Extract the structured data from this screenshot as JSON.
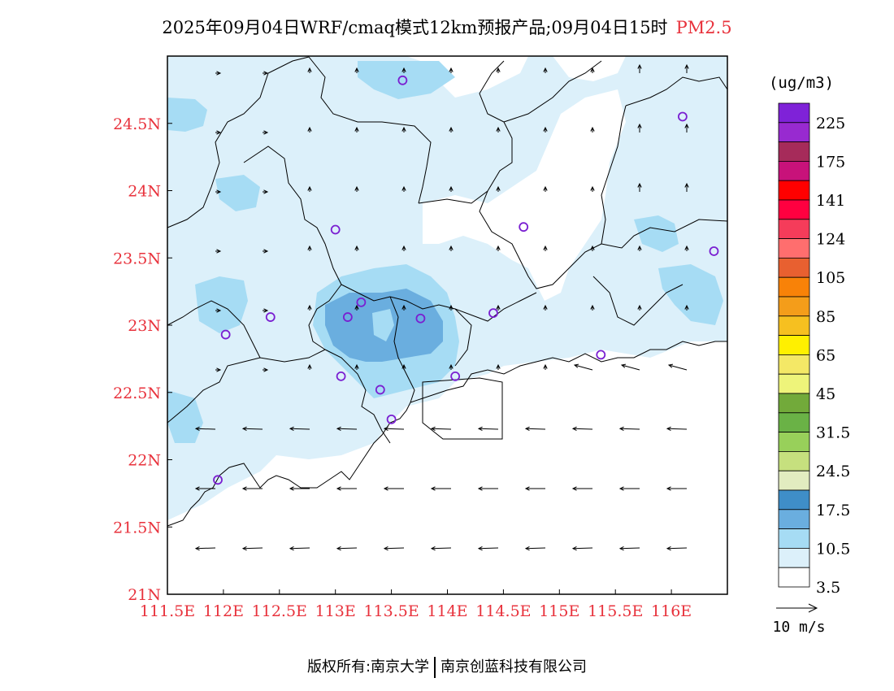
{
  "title": {
    "text": "2025年09月04日WRF/cmaq模式12km预报产品;09月04日15时",
    "variable": "PM2.5"
  },
  "colors": {
    "axis_label": "#e8323c",
    "variable": "#e8323c",
    "station_marker": "#7a1fd1"
  },
  "map": {
    "lat_labels": [
      "24.5N",
      "24N",
      "23.5N",
      "23N",
      "22.5N",
      "22N",
      "21.5N",
      "21N"
    ],
    "lon_labels": [
      "111.5E",
      "112E",
      "112.5E",
      "113E",
      "113.5E",
      "114E",
      "114.5E",
      "115E",
      "115.5E",
      "116E"
    ],
    "lat_range": [
      21,
      25
    ],
    "lon_range": [
      111.5,
      116.5
    ]
  },
  "legend": {
    "unit": "(ug/m3)",
    "labels": [
      "225",
      "175",
      "141",
      "124",
      "105",
      "85",
      "65",
      "45",
      "31.5",
      "24.5",
      "17.5",
      "10.5",
      "3.5"
    ],
    "colors": [
      "#ffffff",
      "#dcf0fa",
      "#a6dcf4",
      "#6aaedf",
      "#3f8ec8",
      "#e2ecc0",
      "#c6e07e",
      "#98d05a",
      "#6ab246",
      "#72aa3a",
      "#eef47a",
      "#f4e866",
      "#fff000",
      "#f6c020",
      "#f49d1a",
      "#f88208",
      "#e86030",
      "#ff6e6e",
      "#f53c5a",
      "#ff0040",
      "#ff0000",
      "#c8127a",
      "#a62b5a",
      "#982ad0",
      "#7f22d8"
    ],
    "wind_ref": "10 m/s"
  },
  "stations": [
    {
      "lon": 113.6,
      "lat": 24.82
    },
    {
      "lon": 116.1,
      "lat": 24.55
    },
    {
      "lon": 113.0,
      "lat": 23.71
    },
    {
      "lon": 114.68,
      "lat": 23.73
    },
    {
      "lon": 116.38,
      "lat": 23.55
    },
    {
      "lon": 112.42,
      "lat": 23.06
    },
    {
      "lon": 113.11,
      "lat": 23.06
    },
    {
      "lon": 113.23,
      "lat": 23.17
    },
    {
      "lon": 113.76,
      "lat": 23.05
    },
    {
      "lon": 114.41,
      "lat": 23.09
    },
    {
      "lon": 112.02,
      "lat": 22.93
    },
    {
      "lon": 113.05,
      "lat": 22.62
    },
    {
      "lon": 113.4,
      "lat": 22.52
    },
    {
      "lon": 114.07,
      "lat": 22.62
    },
    {
      "lon": 115.37,
      "lat": 22.78
    },
    {
      "lon": 113.5,
      "lat": 22.3
    },
    {
      "lon": 111.95,
      "lat": 21.85
    }
  ],
  "footer": {
    "left": "版权所有:南京大学",
    "right": "南京创蓝科技有限公司"
  }
}
